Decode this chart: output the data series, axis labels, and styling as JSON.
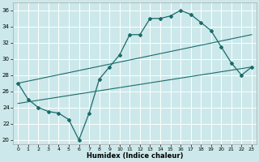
{
  "title": "",
  "xlabel": "Humidex (Indice chaleur)",
  "bg_color": "#cce8ea",
  "line_color": "#1a6b6b",
  "grid_color": "#ffffff",
  "xlim": [
    -0.5,
    23.5
  ],
  "ylim": [
    19.5,
    37
  ],
  "yticks": [
    20,
    22,
    24,
    26,
    28,
    30,
    32,
    34,
    36
  ],
  "xticks": [
    0,
    1,
    2,
    3,
    4,
    5,
    6,
    7,
    8,
    9,
    10,
    11,
    12,
    13,
    14,
    15,
    16,
    17,
    18,
    19,
    20,
    21,
    22,
    23
  ],
  "line1_x": [
    0,
    1,
    2,
    3,
    4,
    5,
    6,
    7,
    8,
    9,
    10,
    11,
    12,
    13,
    14,
    15,
    16,
    17,
    18,
    19,
    20,
    21,
    22,
    23
  ],
  "line1_y": [
    27.0,
    25.0,
    24.0,
    23.5,
    23.3,
    22.5,
    20.0,
    23.3,
    27.5,
    29.0,
    30.5,
    33.0,
    33.0,
    35.0,
    35.0,
    35.3,
    36.0,
    35.5,
    34.5,
    33.5,
    31.5,
    29.5,
    28.0,
    29.0
  ],
  "line2_x": [
    0,
    23
  ],
  "line2_y": [
    24.5,
    29.0
  ],
  "line3_x": [
    0,
    23
  ],
  "line3_y": [
    27.0,
    33.0
  ]
}
